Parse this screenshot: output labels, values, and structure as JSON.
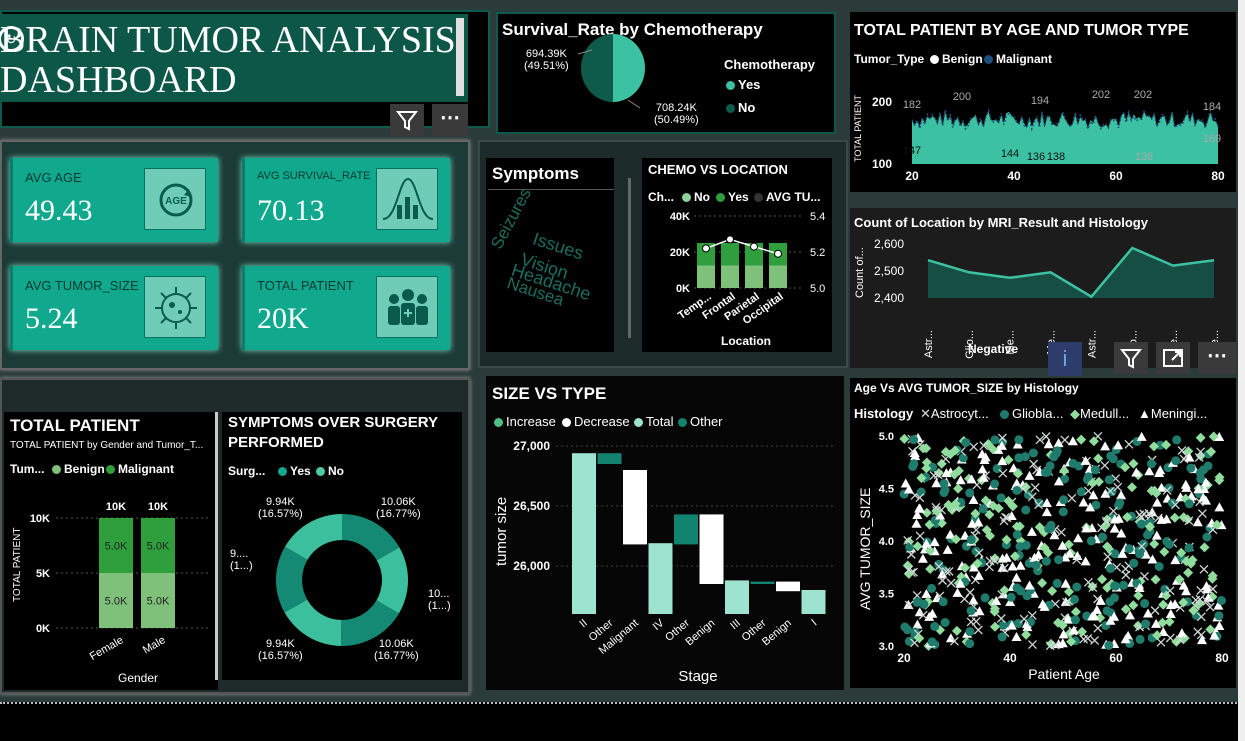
{
  "header": {
    "title_line1": "BRAIN TUMOR ANALYSIS",
    "title_line2": "DASHBOARD"
  },
  "kpis": [
    {
      "label": "AVG AGE",
      "value": "49.43",
      "icon": "age-refresh-icon"
    },
    {
      "label": "AVG SURVIVAL_RATE",
      "value": "70.13",
      "icon": "bell-curve-icon"
    },
    {
      "label": "AVG TUMOR_SIZE",
      "value": "5.24",
      "icon": "virus-cell-icon"
    },
    {
      "label": "TOTAL PATIENT",
      "value": "20K",
      "icon": "people-icon"
    }
  ],
  "survival_pie": {
    "title": "Survival_Rate by Chemotherapy",
    "legend_title": "Chemotherapy",
    "labels": [
      "694.39K\n(49.51%)",
      "708.24K\n(50.49%)"
    ],
    "legend": [
      "Yes",
      "No"
    ]
  },
  "age_tumor": {
    "title": "TOTAL PATIENT BY AGE AND TUMOR TYPE",
    "legend_title": "Tumor_Type",
    "legend": [
      "Benign",
      "Malignant"
    ],
    "ylabel": "TOTAL PATIENT",
    "annotations": [
      "182",
      "200",
      "194",
      "202",
      "184",
      "147",
      "144",
      "136",
      "138",
      "136",
      "169"
    ]
  },
  "symptoms": {
    "title": "Symptoms",
    "words": [
      "Seizures",
      "Issues",
      "Vision",
      "Headache",
      "Nausea"
    ]
  },
  "chemo_location": {
    "title": "CHEMO VS LOCATION",
    "legend_title": "Ch...",
    "legend": [
      "No",
      "Yes",
      "AVG TU..."
    ],
    "xlabel": "Location"
  },
  "mri_location": {
    "title": "Count of Location by MRI_Result and Histology",
    "ylabel": "Count of...",
    "group_label": "Negative"
  },
  "total_gender": {
    "title": "TOTAL PATIENT",
    "subtitle": "TOTAL PATIENT by Gender and Tumor_T...",
    "legend_title": "Tum...",
    "legend": [
      "Benign",
      "Malignant"
    ],
    "ylabel": "TOTAL PATIENT",
    "xlabel": "Gender"
  },
  "symptoms_surgery": {
    "title_line1": "SYMPTOMS OVER SURGERY",
    "title_line2": "PERFORMED",
    "legend_title": "Surg...",
    "legend": [
      "Yes",
      "No"
    ],
    "labels": [
      "10.06K\n(16.77%)",
      "10...\n(1...)",
      "10.06K\n(16.77%)",
      "9.94K\n(16.57%)",
      "9....\n(1...)",
      "9.94K\n(16.57%)"
    ]
  },
  "size_type": {
    "title": "SIZE VS TYPE",
    "legend": [
      "Increase",
      "Decrease",
      "Total",
      "Other"
    ],
    "ylabel": "tumor size",
    "xlabel": "Stage"
  },
  "age_size": {
    "title": "Age Vs AVG TUMOR_SIZE by Histology",
    "legend_title": "Histology",
    "legend": [
      "Astrocyt...",
      "Gliobla...",
      "Medull...",
      "Meningi..."
    ],
    "xlabel": "Patient Age",
    "ylabel": "AVG TUMOR_SIZE"
  },
  "colors": {
    "teal": "#10a98e",
    "dark_teal": "#0b5a4c",
    "mint": "#8fdcc6",
    "green": "#2e9f3c",
    "light_green": "#7fc07a"
  },
  "chart_data": [
    {
      "type": "pie",
      "title": "Survival_Rate by Chemotherapy",
      "categories": [
        "Yes",
        "No"
      ],
      "values": [
        694.39,
        708.24
      ],
      "unit": "K",
      "percents": [
        49.51,
        50.49
      ]
    },
    {
      "type": "line",
      "title": "TOTAL PATIENT BY AGE AND TUMOR TYPE",
      "ylabel": "TOTAL PATIENT",
      "xlim": [
        20,
        80
      ],
      "ylim": [
        100,
        220
      ],
      "x": [
        20,
        30,
        40,
        45,
        50,
        58,
        65,
        75,
        80
      ],
      "series": [
        {
          "name": "Benign",
          "values": [
            182,
            147,
            200,
            144,
            194,
            202,
            136,
            184,
            169
          ]
        }
      ]
    },
    {
      "type": "bar",
      "title": "CHEMO VS LOCATION",
      "xlabel": "Location",
      "categories": [
        "Temp...",
        "Frontal",
        "Parietal",
        "Occipital"
      ],
      "ylim": [
        0,
        40000
      ],
      "series": [
        {
          "name": "No",
          "values": [
            12500,
            12500,
            12500,
            12500
          ]
        },
        {
          "name": "Yes",
          "values": [
            12500,
            12500,
            12500,
            12500
          ]
        },
        {
          "name": "AVG TU...",
          "values": [
            5.22,
            5.27,
            5.23,
            5.19
          ],
          "axis_range": [
            5.0,
            5.4
          ]
        }
      ]
    },
    {
      "type": "area",
      "title": "Count of Location by MRI_Result and Histology",
      "ylim": [
        2400,
        2600
      ],
      "categories": [
        "Astr...",
        "Glio...",
        "Me...",
        "Me...",
        "Astr...",
        "Glio...",
        "Me...",
        "Me..."
      ],
      "values": [
        2540,
        2495,
        2475,
        2495,
        2405,
        2585,
        2520,
        2540
      ]
    },
    {
      "type": "bar",
      "title": "TOTAL PATIENT",
      "xlabel": "Gender",
      "categories": [
        "Female",
        "Male"
      ],
      "ylim": [
        0,
        10000
      ],
      "series": [
        {
          "name": "Benign",
          "values": [
            5000,
            5000
          ]
        },
        {
          "name": "Malignant",
          "values": [
            5000,
            5000
          ]
        }
      ],
      "totals": [
        10000,
        10000
      ]
    },
    {
      "type": "pie",
      "title": "SYMPTOMS OVER SURGERY PERFORMED",
      "values": [
        10.06,
        10.0,
        10.06,
        9.94,
        9.94,
        9.94
      ],
      "unit": "K",
      "colors": [
        "Yes",
        "No",
        "Yes",
        "No",
        "Yes",
        "No"
      ]
    },
    {
      "type": "bar",
      "title": "SIZE VS TYPE",
      "xlabel": "Stage",
      "ylabel": "tumor size",
      "ylim": [
        25600,
        27000
      ],
      "categories": [
        "II",
        "Other",
        "Malignant",
        "IV",
        "Other",
        "Benign",
        "III",
        "Other",
        "Benign",
        "I"
      ],
      "kinds": [
        "total",
        "other",
        "decrease",
        "total",
        "other",
        "decrease",
        "total",
        "other",
        "decrease",
        "total"
      ],
      "lows": [
        25600,
        26850,
        26180,
        25600,
        26180,
        25850,
        25600,
        25850,
        25790,
        25600
      ],
      "highs": [
        26940,
        26940,
        26800,
        26190,
        26430,
        26430,
        25880,
        25870,
        25870,
        25800
      ]
    },
    {
      "type": "scatter",
      "title": "Age Vs AVG TUMOR_SIZE by Histology",
      "xlabel": "Patient Age",
      "ylabel": "AVG TUMOR_SIZE",
      "xlim": [
        20,
        80
      ],
      "ylim": [
        3.0,
        5.0
      ],
      "series": [
        "Astrocyt...",
        "Gliobla...",
        "Medull...",
        "Meningi..."
      ]
    }
  ]
}
